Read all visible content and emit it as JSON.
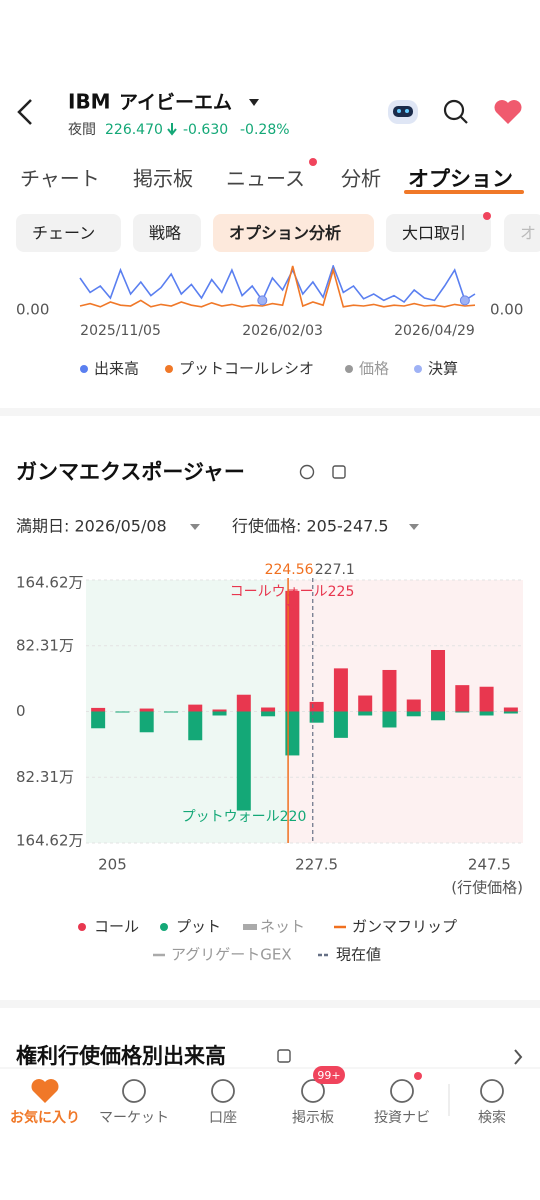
{
  "header": {
    "ticker": "IBM",
    "name": "アイビーエム",
    "session": "夜間",
    "price": "226.470",
    "change": "-0.630",
    "change_pct": "-0.28%"
  },
  "tabs": [
    "チャート",
    "掲示板",
    "ニュース",
    "分析",
    "オプション"
  ],
  "sub_tabs": [
    "チェーン",
    "戦略",
    "オプション分析",
    "大口取引",
    "オ"
  ],
  "section": {
    "title": "ガンマエクスポージャー",
    "expiry": "満期日: 2026/05/08",
    "strike_range": "行使価格: 205-247.5"
  },
  "next_section": {
    "title": "権利行使価格別出来高"
  },
  "bottom_nav": [
    "お気に入り",
    "マーケット",
    "口座",
    "掲示板",
    "投資ナビ",
    "検索"
  ],
  "badge": "99+",
  "chart_data": [
    {
      "type": "line",
      "categories": [
        null,
        null,
        null,
        null,
        "2025/11/05",
        null,
        null,
        null,
        null,
        null,
        null,
        null,
        null,
        null,
        null,
        null,
        null,
        null,
        null,
        null,
        "2026/02/03",
        null,
        null,
        null,
        null,
        null,
        null,
        null,
        null,
        null,
        null,
        null,
        null,
        null,
        null,
        "2026/04/29",
        null,
        null,
        null,
        null
      ],
      "series": [
        {
          "name": "出来高",
          "color": "#5a7ff0",
          "values": [
            0.4,
            0.22,
            0.3,
            0.15,
            0.5,
            0.2,
            0.35,
            0.18,
            0.28,
            0.45,
            0.2,
            0.32,
            0.15,
            0.38,
            0.22,
            0.5,
            0.18,
            0.3,
            0.12,
            0.4,
            0.25,
            0.5,
            0.2,
            0.35,
            0.16,
            0.55,
            0.22,
            0.3,
            0.14,
            0.2,
            0.12,
            0.18,
            0.1,
            0.25,
            0.15,
            0.12,
            0.3,
            0.5,
            0.12,
            0.2
          ]
        },
        {
          "name": "プットコールレシオ",
          "color": "#f07828",
          "axis": "y2",
          "values": [
            0.05,
            0.08,
            0.04,
            0.1,
            0.06,
            0.05,
            0.12,
            0.04,
            0.07,
            0.05,
            0.1,
            0.06,
            0.04,
            0.09,
            0.05,
            0.07,
            0.04,
            0.06,
            0.05,
            0.08,
            0.06,
            0.55,
            0.05,
            0.1,
            0.06,
            0.5,
            0.04,
            0.06,
            0.05,
            0.07,
            0.04,
            0.06,
            0.05,
            0.08,
            0.05,
            0.06,
            0.04,
            0.07,
            0.05,
            0.06
          ]
        },
        {
          "name": "決算",
          "color": "#9fb2f5",
          "values": [
            null,
            null,
            null,
            null,
            null,
            null,
            null,
            null,
            null,
            null,
            null,
            null,
            null,
            null,
            null,
            null,
            null,
            null,
            0.12,
            null,
            null,
            null,
            null,
            null,
            null,
            null,
            null,
            null,
            null,
            null,
            null,
            null,
            null,
            null,
            null,
            null,
            null,
            null,
            0.12,
            null
          ]
        }
      ],
      "legend_extra": [
        {
          "name": "価格",
          "color": "#999999",
          "disabled": true
        }
      ],
      "ylim": [
        0,
        1
      ],
      "yticks": [
        {
          "value": 0,
          "label": "0.00"
        }
      ],
      "y2lim": [
        0,
        1
      ],
      "y2ticks": [
        {
          "value": 0,
          "label": "0.00"
        }
      ]
    },
    {
      "type": "bar",
      "x": [
        205,
        207.5,
        210,
        212.5,
        215,
        217.5,
        220,
        222.5,
        225,
        227.5,
        230,
        232.5,
        235,
        237.5,
        240,
        242.5,
        245,
        247.5
      ],
      "series": [
        {
          "name": "コール",
          "color": "#e8374f",
          "values": [
            4.5,
            0,
            3.7,
            0,
            8.6,
            2.5,
            21,
            5,
            151,
            12,
            54,
            20,
            52,
            15,
            77,
            33,
            31,
            5
          ]
        },
        {
          "name": "プット",
          "color": "#14a877",
          "values": [
            -21,
            -1.2,
            -26,
            -1.2,
            -36,
            -5,
            -124,
            -6,
            -55,
            -14,
            -33,
            -5,
            -20,
            -6,
            -11,
            -1.2,
            -5,
            -2.5
          ]
        }
      ],
      "legend_extra": [
        {
          "name": "ネット",
          "color": "#aaaaaa",
          "disabled": true
        },
        {
          "name": "ガンマフリップ",
          "color": "#f07020"
        },
        {
          "name": "アグリゲートGEX",
          "color": "#aaaaaa",
          "disabled": true
        },
        {
          "name": "現在値",
          "color": "#667085"
        }
      ],
      "xlim": [
        203.75,
        248.75
      ],
      "xticks": [
        205,
        227.5,
        247.5
      ],
      "xlabel": "(行使価格)",
      "ylim": [
        -164.62,
        164.62
      ],
      "yticks": [
        {
          "value": 164.62,
          "label": "164.62万"
        },
        {
          "value": 82.31,
          "label": "82.31万"
        },
        0,
        {
          "value": -82.31,
          "label": "82.31万"
        },
        {
          "value": -164.62,
          "label": "164.62万"
        }
      ],
      "gamma_flip": 224.56,
      "current_value": 227.1,
      "annotations": [
        "コールウォール225",
        "プットウォール220"
      ],
      "grid": true
    }
  ]
}
